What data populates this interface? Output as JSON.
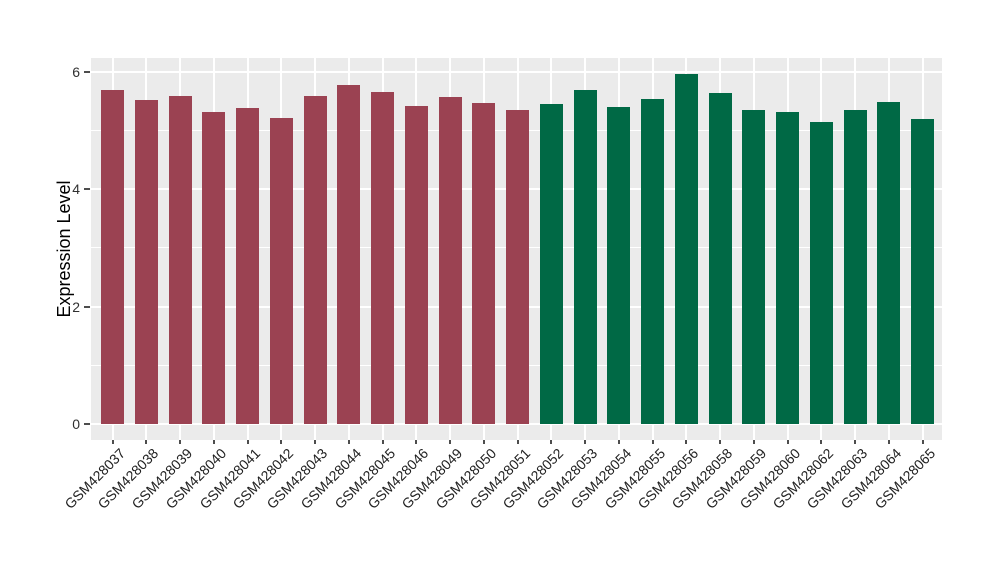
{
  "figure": {
    "background": "#ffffff",
    "panel_background": "#ebebeb",
    "grid_color": "#ffffff",
    "tick_color": "#4d4d4d",
    "tick_label_color": "#303030",
    "axis_title_color": "#000000"
  },
  "chart_data": {
    "type": "bar",
    "title": "",
    "xlabel": "",
    "ylabel": "Expression Level",
    "ylim": [
      0,
      6.3
    ],
    "yticks": [
      0,
      2,
      4,
      6
    ],
    "yticks_minor": [
      1,
      3,
      5
    ],
    "grid": "on",
    "legend": "none",
    "panel_style": "ggplot-grey",
    "categories": [
      "GSM428037",
      "GSM428038",
      "GSM428039",
      "GSM428040",
      "GSM428041",
      "GSM428042",
      "GSM428043",
      "GSM428044",
      "GSM428045",
      "GSM428046",
      "GSM428049",
      "GSM428050",
      "GSM428051",
      "GSM428052",
      "GSM428053",
      "GSM428054",
      "GSM428055",
      "GSM428056",
      "GSM428058",
      "GSM428059",
      "GSM428060",
      "GSM428062",
      "GSM428063",
      "GSM428064",
      "GSM428065"
    ],
    "values": [
      5.7,
      5.53,
      5.59,
      5.32,
      5.39,
      5.21,
      5.59,
      5.78,
      5.66,
      5.42,
      5.57,
      5.47,
      5.36,
      5.45,
      5.69,
      5.4,
      5.54,
      5.97,
      5.64,
      5.36,
      5.31,
      5.15,
      5.35,
      5.49,
      5.2
    ],
    "groups": [
      {
        "name": "group-1",
        "color": "#9b4252",
        "start": 0,
        "end": 12
      },
      {
        "name": "group-2",
        "color": "#006945",
        "start": 13,
        "end": 24
      }
    ]
  }
}
